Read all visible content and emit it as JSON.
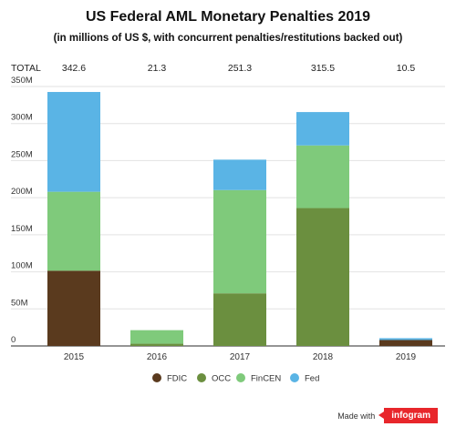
{
  "title": "US Federal AML Monetary Penalties 2019",
  "subtitle": "(in millions of US $, with concurrent penalties/restitutions backed out)",
  "footer": {
    "made_with": "Made with",
    "brand": "infogram"
  },
  "chart_data": {
    "type": "bar",
    "stacked": true,
    "categories": [
      "2015",
      "2016",
      "2017",
      "2018",
      "2019"
    ],
    "series": [
      {
        "name": "FDIC",
        "color": "#5a3a1e",
        "values": [
          101.5,
          0,
          0,
          0,
          8.0
        ]
      },
      {
        "name": "OCC",
        "color": "#6b8f3f",
        "values": [
          0,
          3.0,
          71.0,
          186.0,
          0
        ]
      },
      {
        "name": "FinCEN",
        "color": "#7fca7b",
        "values": [
          106.5,
          18.3,
          139.3,
          84.5,
          0
        ]
      },
      {
        "name": "Fed",
        "color": "#5ab4e5",
        "values": [
          134.6,
          0,
          41.0,
          45.0,
          2.5
        ]
      }
    ],
    "totals_label": "TOTAL",
    "totals": [
      "342.6",
      "21.3",
      "251.3",
      "315.5",
      "10.5"
    ],
    "ylim": [
      0,
      350
    ],
    "yticks": [
      0,
      50,
      100,
      150,
      200,
      250,
      300,
      350
    ],
    "ytick_labels": [
      "0",
      "50M",
      "100M",
      "150M",
      "200M",
      "250M",
      "300M",
      "350M"
    ],
    "grid": true,
    "legend_position": "bottom"
  }
}
